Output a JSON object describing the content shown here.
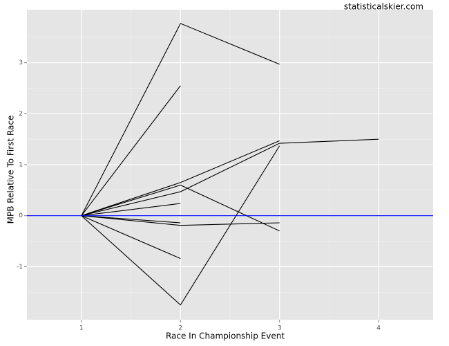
{
  "chart_data": {
    "type": "line",
    "xlabel": "Race In Championship Event",
    "ylabel": "MPB Relative To First Race",
    "annotation": "statisticalskier.com",
    "x": [
      1,
      2,
      3,
      4
    ],
    "series": [
      {
        "color": "#000000",
        "values": [
          0,
          3.77,
          2.97,
          null
        ]
      },
      {
        "color": "#000000",
        "values": [
          0,
          2.55,
          null,
          null
        ]
      },
      {
        "color": "#000000",
        "values": [
          0,
          0.65,
          1.47,
          null
        ]
      },
      {
        "color": "#000000",
        "values": [
          0,
          0.47,
          1.42,
          1.5
        ]
      },
      {
        "color": "#000000",
        "values": [
          0,
          0.6,
          -0.3,
          null
        ]
      },
      {
        "color": "#000000",
        "values": [
          0,
          0.24,
          null,
          null
        ]
      },
      {
        "color": "#000000",
        "values": [
          0,
          -0.14,
          null,
          null
        ]
      },
      {
        "color": "#000000",
        "values": [
          0,
          -0.19,
          -0.14,
          null
        ]
      },
      {
        "color": "#000000",
        "values": [
          0,
          -0.84,
          null,
          null
        ]
      },
      {
        "color": "#000000",
        "values": [
          0,
          -1.75,
          1.37,
          null
        ]
      }
    ],
    "hline": 0,
    "hline_color": "#0000ff",
    "xlim": [
      0.45,
      4.55
    ],
    "ylim": [
      -2.04,
      4.04
    ],
    "xticks": [
      1,
      2,
      3,
      4
    ],
    "yticks": [
      -1,
      0,
      1,
      2,
      3
    ],
    "x_minor_ticks": [
      1.5,
      2.5,
      3.5
    ],
    "y_minor_ticks": [
      -1.5,
      -0.5,
      0.5,
      1.5,
      2.5,
      3.5
    ],
    "grid": true
  }
}
